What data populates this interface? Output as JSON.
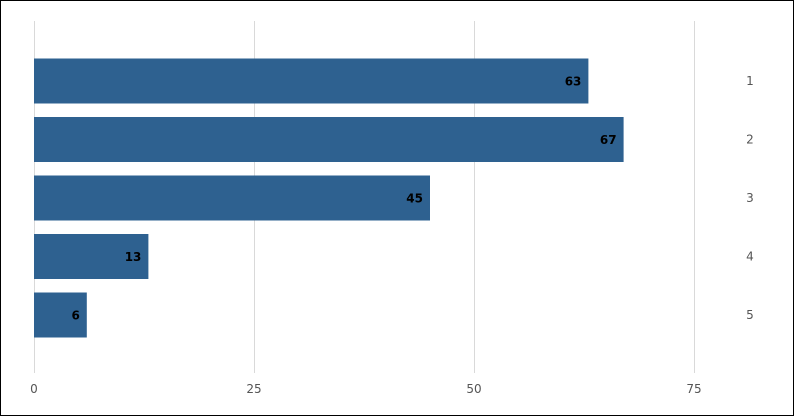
{
  "chart_data": {
    "type": "bar",
    "orientation": "horizontal",
    "categories": [
      "1",
      "2",
      "3",
      "4",
      "5"
    ],
    "values": [
      63,
      67,
      45,
      13,
      6
    ],
    "x_ticks": [
      0,
      25,
      50,
      75
    ],
    "xlim": [
      0,
      75
    ],
    "grid": "vertical",
    "category_axis_position": "right",
    "title": "",
    "xlabel": "",
    "ylabel": "",
    "colors": {
      "bar": "#2e6190",
      "grid": "#d9d9d9",
      "label": "#000000",
      "tick": "#555555"
    }
  }
}
